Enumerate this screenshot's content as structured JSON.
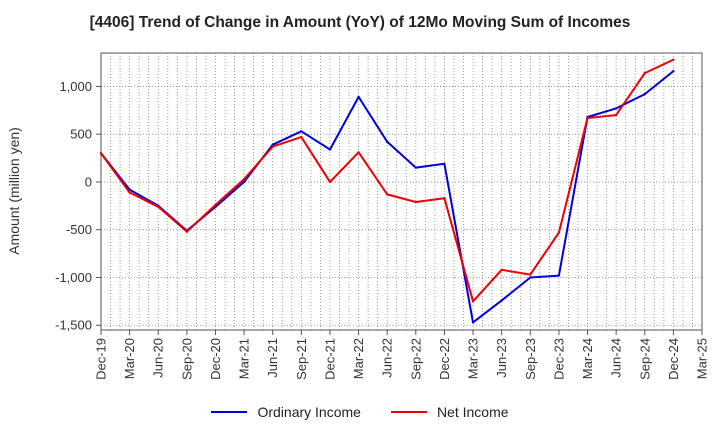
{
  "chart_data": {
    "type": "line",
    "title": "[4406]  Trend of Change in Amount (YoY) of 12Mo Moving Sum of Incomes",
    "xlabel": "",
    "ylabel": "Amount (million yen)",
    "ylim": [
      -1550,
      1350
    ],
    "yticks": [
      -1500,
      -1000,
      -500,
      0,
      500,
      1000
    ],
    "ytick_labels": [
      "-1,500",
      "-1,000",
      "-500",
      "0",
      "500",
      "1,000"
    ],
    "categories": [
      "Dec-19",
      "Mar-20",
      "Jun-20",
      "Sep-20",
      "Dec-20",
      "Mar-21",
      "Jun-21",
      "Sep-21",
      "Dec-21",
      "Mar-22",
      "Jun-22",
      "Sep-22",
      "Dec-22",
      "Mar-23",
      "Jun-23",
      "Sep-23",
      "Dec-23",
      "Mar-24",
      "Jun-24",
      "Sep-24",
      "Dec-24",
      "Mar-25"
    ],
    "grid": true,
    "legend_position": "bottom-center",
    "series": [
      {
        "name": "Ordinary Income",
        "color": "#0000dd",
        "values": [
          300,
          -80,
          -250,
          -510,
          -260,
          0,
          390,
          530,
          340,
          890,
          420,
          150,
          190,
          -1470,
          -1240,
          -1000,
          -980,
          680,
          770,
          920,
          1160,
          null
        ]
      },
      {
        "name": "Net Income",
        "color": "#ee0000",
        "values": [
          300,
          -110,
          -260,
          -520,
          -240,
          30,
          370,
          470,
          0,
          310,
          -130,
          -210,
          -170,
          -1250,
          -920,
          -970,
          -530,
          670,
          700,
          1140,
          1280,
          null
        ]
      }
    ]
  }
}
